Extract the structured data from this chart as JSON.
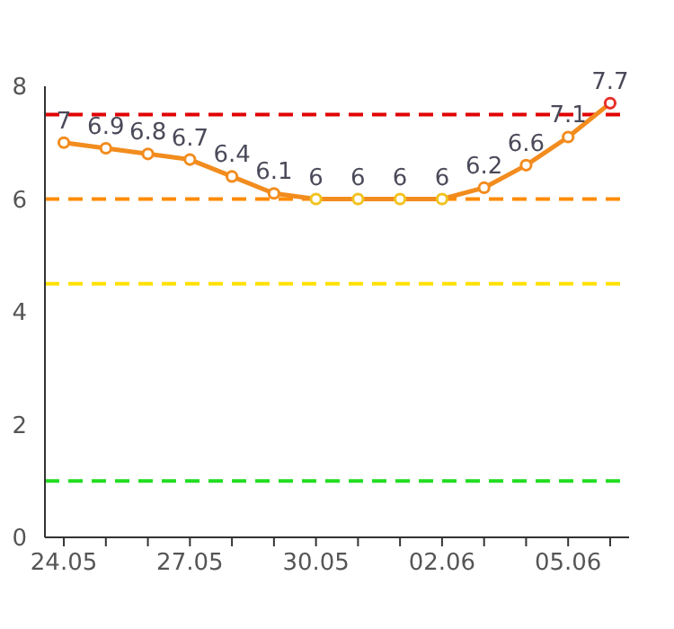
{
  "chart_data": {
    "type": "line",
    "categories": [
      "24.05",
      null,
      null,
      "27.05",
      null,
      null,
      "30.05",
      null,
      null,
      "02.06",
      null,
      null,
      "05.06",
      null
    ],
    "series": [
      {
        "color": "#f28c1e",
        "values": [
          7,
          6.9,
          6.8,
          6.7,
          6.4,
          6.1,
          6,
          6,
          6,
          6,
          6.2,
          6.6,
          7.1,
          7.7
        ],
        "colors": [
          "#f28c1e",
          "#f28c1e",
          "#f28c1e",
          "#f28c1e",
          "#f28c1e",
          "#f28c1e",
          "#f2c21e",
          "#f2c21e",
          "#f2c21e",
          "#f2c21e",
          "#f28c1e",
          "#f28c1e",
          "#f28c1e",
          "#e8312a"
        ]
      }
    ],
    "ylim": [
      0,
      8
    ],
    "yticks": [
      0,
      2,
      4,
      6,
      8
    ],
    "grid": false,
    "marker": "circle",
    "line_style": "solid",
    "data_labels": true,
    "ref_lines": [
      {
        "axis": "y",
        "value": 7.5,
        "color": "#e00000",
        "line_style": "dashed"
      },
      {
        "axis": "y",
        "value": 6,
        "color": "#ff8c00",
        "line_style": "dashed"
      },
      {
        "axis": "y",
        "value": 4.5,
        "color": "#ffe000",
        "line_style": "dashed"
      },
      {
        "axis": "y",
        "value": 1,
        "color": "#22dd22",
        "line_style": "dashed"
      }
    ]
  }
}
